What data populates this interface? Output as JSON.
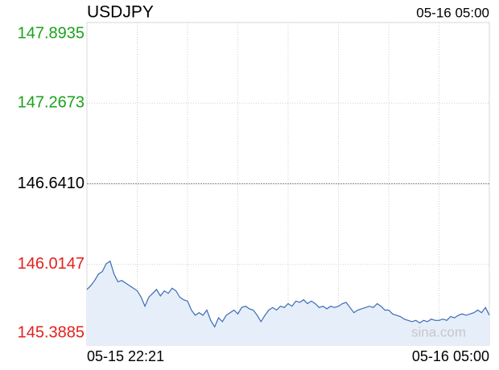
{
  "chart_data": {
    "type": "line",
    "title": "USDJPY",
    "timestamp": "05-16 05:00",
    "watermark": "sina.com",
    "x_labels": [
      "05-15 22:21",
      "05-16 05:00"
    ],
    "ylim": [
      145.3885,
      147.8935
    ],
    "yticks": [
      145.3885,
      146.0147,
      146.641,
      {
        "value": 146.641,
        "label": "146.6410"
      },
      147.2673,
      147.8935
    ],
    "grid": true,
    "up_color": "#1aa31a",
    "down_color": "#e3211c",
    "base_color": "#000000",
    "series": [
      {
        "name": "USDJPY",
        "color": "#3a6bb5",
        "fill": "#e6eef9",
        "values": [
          145.82,
          145.85,
          145.89,
          145.94,
          145.96,
          146.02,
          146.04,
          145.94,
          145.88,
          145.89,
          145.87,
          145.85,
          145.83,
          145.81,
          145.76,
          145.69,
          145.76,
          145.79,
          145.82,
          145.77,
          145.81,
          145.79,
          145.83,
          145.81,
          145.76,
          145.74,
          145.73,
          145.66,
          145.62,
          145.64,
          145.62,
          145.66,
          145.58,
          145.53,
          145.6,
          145.57,
          145.62,
          145.64,
          145.66,
          145.63,
          145.68,
          145.69,
          145.67,
          145.66,
          145.62,
          145.57,
          145.62,
          145.66,
          145.68,
          145.66,
          145.69,
          145.68,
          145.71,
          145.69,
          145.73,
          145.72,
          145.74,
          145.71,
          145.73,
          145.71,
          145.68,
          145.69,
          145.67,
          145.69,
          145.68,
          145.69,
          145.71,
          145.72,
          145.68,
          145.64,
          145.66,
          145.67,
          145.68,
          145.69,
          145.68,
          145.71,
          145.69,
          145.66,
          145.66,
          145.63,
          145.62,
          145.61,
          145.59,
          145.58,
          145.57,
          145.58,
          145.56,
          145.58,
          145.57,
          145.59,
          145.58,
          145.58,
          145.59,
          145.58,
          145.61,
          145.6,
          145.62,
          145.63,
          145.62,
          145.63,
          145.64,
          145.66,
          145.64,
          145.68,
          145.62
        ]
      }
    ]
  }
}
